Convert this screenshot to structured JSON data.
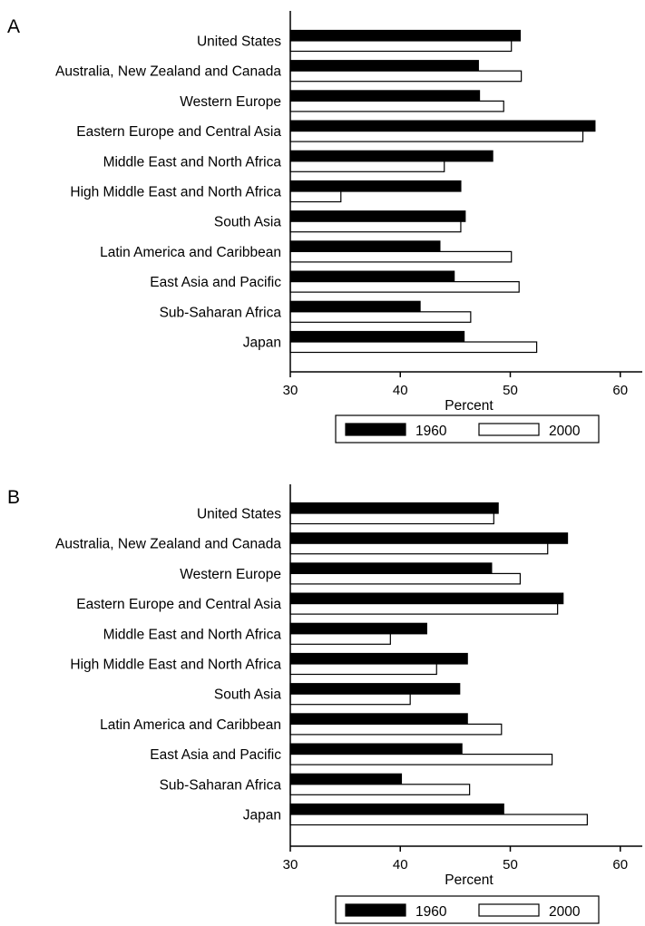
{
  "chart_data": [
    {
      "type": "bar",
      "panel_label": "A",
      "orientation": "horizontal",
      "categories": [
        "United States",
        "Australia, New Zealand and Canada",
        "Western Europe",
        "Eastern Europe and Central Asia",
        "Middle East and North Africa",
        "High Middle East and North Africa",
        "South Asia",
        "Latin America and Caribbean",
        "East Asia and Pacific",
        "Sub-Saharan Africa",
        "Japan"
      ],
      "series": [
        {
          "name": "1960",
          "color": "#000000",
          "values": [
            50.9,
            47.1,
            47.2,
            57.7,
            48.4,
            45.5,
            45.9,
            43.6,
            44.9,
            41.8,
            45.8
          ]
        },
        {
          "name": "2000",
          "color": "#ffffff",
          "values": [
            50.1,
            51.0,
            49.4,
            56.6,
            44.0,
            34.6,
            45.5,
            50.1,
            50.8,
            46.4,
            52.4
          ]
        }
      ],
      "xlabel": "Percent",
      "xlim": [
        30,
        62
      ],
      "xticks": [
        30,
        40,
        50,
        60
      ],
      "grid": false,
      "legend_position": "bottom"
    },
    {
      "type": "bar",
      "panel_label": "B",
      "orientation": "horizontal",
      "categories": [
        "United States",
        "Australia, New Zealand and Canada",
        "Western Europe",
        "Eastern Europe and Central Asia",
        "Middle East and North Africa",
        "High Middle East and North Africa",
        "South Asia",
        "Latin America and Caribbean",
        "East Asia and Pacific",
        "Sub-Saharan Africa",
        "Japan"
      ],
      "series": [
        {
          "name": "1960",
          "color": "#000000",
          "values": [
            48.9,
            55.2,
            48.3,
            54.8,
            42.4,
            46.1,
            45.4,
            46.1,
            45.6,
            40.1,
            49.4
          ]
        },
        {
          "name": "2000",
          "color": "#ffffff",
          "values": [
            48.5,
            53.4,
            50.9,
            54.3,
            39.1,
            43.3,
            40.9,
            49.2,
            53.8,
            46.3,
            57.0
          ]
        }
      ],
      "xlabel": "Percent",
      "xlim": [
        30,
        62
      ],
      "xticks": [
        30,
        40,
        50,
        60
      ],
      "grid": false,
      "legend_position": "bottom"
    }
  ]
}
